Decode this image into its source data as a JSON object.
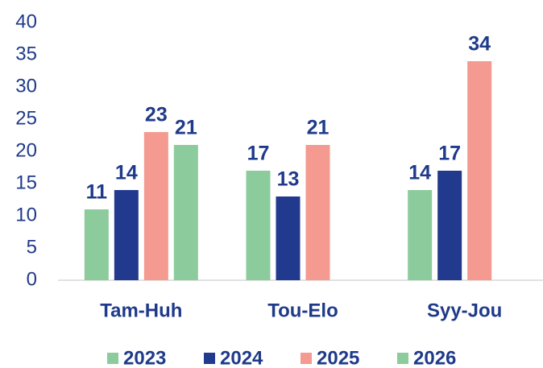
{
  "chart_data": {
    "type": "bar",
    "categories": [
      "Tam-Huh",
      "Tou-Elo",
      "Syy-Jou"
    ],
    "series": [
      {
        "name": "2023",
        "color": "#8ccb9b",
        "values": [
          11,
          17,
          14
        ]
      },
      {
        "name": "2024",
        "color": "#223a8e",
        "values": [
          14,
          13,
          17
        ]
      },
      {
        "name": "2025",
        "color": "#f49a90",
        "values": [
          23,
          21,
          34
        ]
      },
      {
        "name": "2026",
        "color": "#8ccb9b",
        "values": [
          21,
          null,
          null
        ]
      }
    ],
    "ylim": [
      0,
      40
    ],
    "yticks": [
      0,
      5,
      10,
      15,
      20,
      25,
      30,
      35,
      40
    ],
    "grid": false,
    "legend": "bottom"
  }
}
